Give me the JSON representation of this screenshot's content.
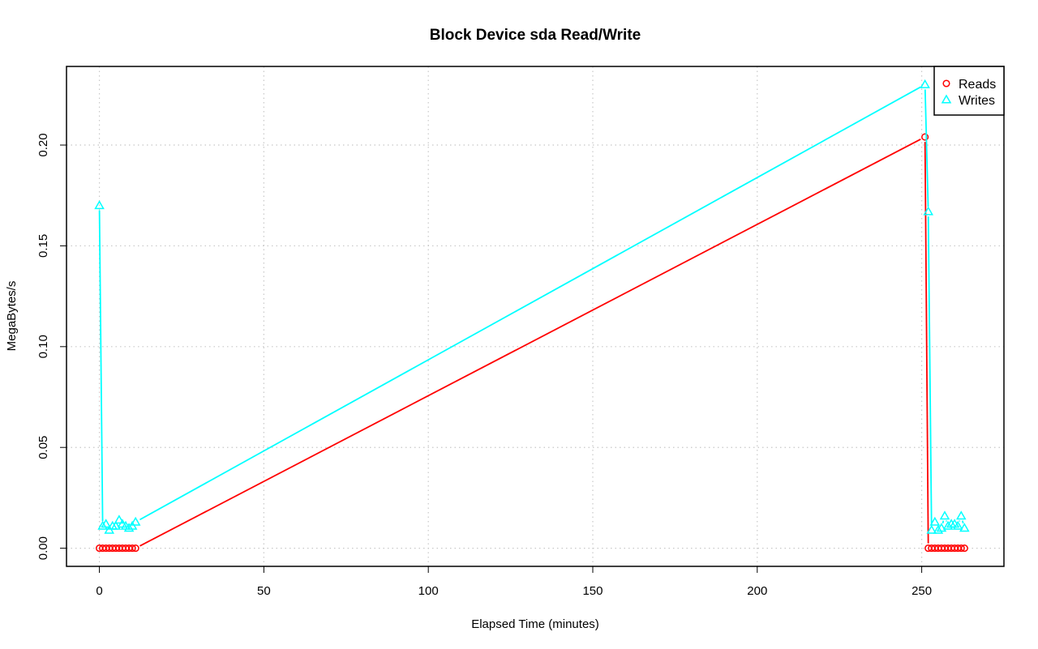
{
  "chart_data": {
    "type": "line",
    "title": "Block Device sda Read/Write",
    "xlabel": "Elapsed Time (minutes)",
    "ylabel": "MegaBytes/s",
    "xlim": [
      -10,
      275
    ],
    "ylim": [
      -0.009,
      0.239
    ],
    "x_ticks": [
      0,
      50,
      100,
      150,
      200,
      250
    ],
    "x_tick_labels": [
      "0",
      "50",
      "100",
      "150",
      "200",
      "250"
    ],
    "y_ticks": [
      0.0,
      0.05,
      0.1,
      0.15,
      0.2
    ],
    "y_tick_labels": [
      "0.00",
      "0.05",
      "0.10",
      "0.15",
      "0.20"
    ],
    "grid": true,
    "legend_position": "top-right",
    "series": [
      {
        "name": "Reads",
        "color": "#ff0000",
        "marker": "circle",
        "points": [
          [
            0,
            0.0
          ],
          [
            1,
            0.0
          ],
          [
            2,
            0.0
          ],
          [
            3,
            0.0
          ],
          [
            4,
            0.0
          ],
          [
            5,
            0.0
          ],
          [
            6,
            0.0
          ],
          [
            7,
            0.0
          ],
          [
            8,
            0.0
          ],
          [
            9,
            0.0
          ],
          [
            10,
            0.0
          ],
          [
            11,
            0.0
          ],
          [
            251,
            0.204
          ],
          [
            252,
            0.0
          ],
          [
            253,
            0.0
          ],
          [
            254,
            0.0
          ],
          [
            255,
            0.0
          ],
          [
            256,
            0.0
          ],
          [
            257,
            0.0
          ],
          [
            258,
            0.0
          ],
          [
            259,
            0.0
          ],
          [
            260,
            0.0
          ],
          [
            261,
            0.0
          ],
          [
            262,
            0.0
          ],
          [
            263,
            0.0
          ]
        ]
      },
      {
        "name": "Writes",
        "color": "#00ffff",
        "marker": "triangle",
        "points": [
          [
            0,
            0.17
          ],
          [
            1,
            0.011
          ],
          [
            2,
            0.012
          ],
          [
            3,
            0.009
          ],
          [
            4,
            0.011
          ],
          [
            5,
            0.011
          ],
          [
            6,
            0.014
          ],
          [
            7,
            0.012
          ],
          [
            8,
            0.011
          ],
          [
            9,
            0.01
          ],
          [
            10,
            0.011
          ],
          [
            11,
            0.013
          ],
          [
            251,
            0.23
          ],
          [
            252,
            0.167
          ],
          [
            253,
            0.009
          ],
          [
            254,
            0.013
          ],
          [
            255,
            0.009
          ],
          [
            256,
            0.01
          ],
          [
            257,
            0.016
          ],
          [
            258,
            0.011
          ],
          [
            259,
            0.012
          ],
          [
            260,
            0.012
          ],
          [
            261,
            0.011
          ],
          [
            262,
            0.016
          ],
          [
            263,
            0.01
          ]
        ]
      }
    ]
  }
}
